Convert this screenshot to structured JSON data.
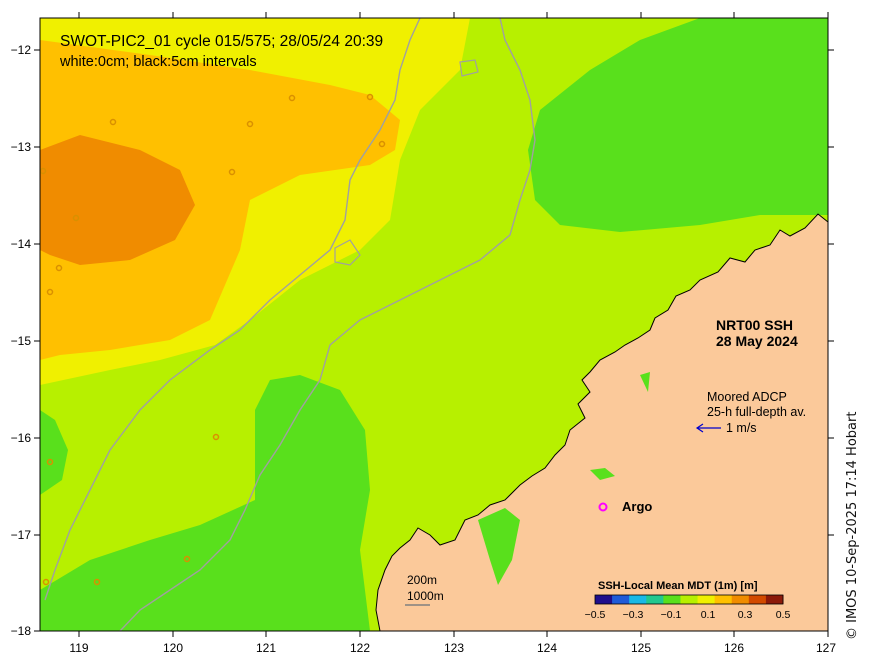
{
  "header": {
    "title": "SWOT-PIC2_01 cycle 015/575; 28/05/24 20:39",
    "subtitle": "white:0cm; black:5cm intervals"
  },
  "product": {
    "line1": "NRT00 SSH",
    "line2": "28 May 2024"
  },
  "adcp": {
    "line1": "Moored ADCP",
    "line2": "25-h full-depth av.",
    "scale": "1 m/s"
  },
  "argo": {
    "symbol": "o",
    "label": "Argo"
  },
  "bathymetry": {
    "contour1": "200m",
    "contour2": "1000m"
  },
  "colorbar": {
    "title": "SSH-Local Mean MDT (1m) [m]",
    "ticks": [
      "−0.5",
      "−0.3",
      "−0.1",
      "0.1",
      "0.3",
      "0.5"
    ],
    "colors": [
      "#1f0e8c",
      "#1f5bd8",
      "#19b9e6",
      "#22c88f",
      "#59e01c",
      "#b7f000",
      "#f0f000",
      "#ffc000",
      "#f08c00",
      "#d24a00",
      "#8c1a0a"
    ]
  },
  "axes": {
    "x_ticks": [
      "119",
      "120",
      "121",
      "122",
      "123",
      "124",
      "125",
      "126",
      "127"
    ],
    "y_ticks": [
      "−12",
      "−13",
      "−14",
      "−15",
      "−16",
      "−17",
      "−18"
    ]
  },
  "credit": "© IMOS 10-Sep-2025 17:14 Hobart",
  "colors": {
    "high_orange": "#f08c00",
    "orange": "#ffc000",
    "yellow": "#f0f000",
    "yellow_green": "#b7f000",
    "green": "#59e01c",
    "land": "#fbc99a",
    "argo_marker": "#ff00ff",
    "adcp_arrow": "#0000cc"
  }
}
